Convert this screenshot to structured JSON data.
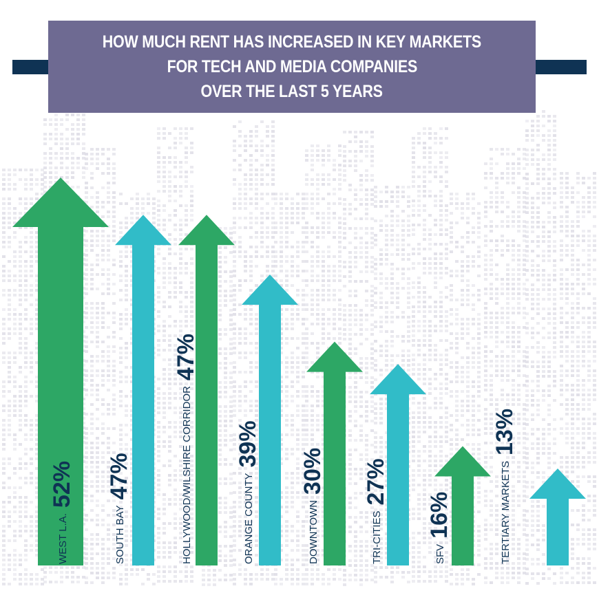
{
  "title": {
    "lines": [
      "HOW MUCH RENT HAS INCREASED IN KEY MARKETS",
      "FOR TECH AND MEDIA COMPANIES",
      "OVER THE LAST 5 YEARS"
    ]
  },
  "colors": {
    "green": "#2da765",
    "teal": "#31bcc8",
    "navy": "#0f3354",
    "title_bg": "#6e6a92",
    "title_text": "#ffffff",
    "city_grid": "#dedde6"
  },
  "chart_data": {
    "type": "bar",
    "title": "HOW MUCH RENT HAS INCREASED IN KEY MARKETS FOR TECH AND MEDIA COMPANIES OVER THE LAST 5 YEARS",
    "xlabel": "",
    "ylabel": "",
    "ylim": [
      0,
      55
    ],
    "grid": false,
    "categories": [
      "WEST L.A.",
      "SOUTH BAY",
      "HOLLYWOOD/WILSHIRE CORRIDOR",
      "ORANGE COUNTY",
      "DOWNTOWN",
      "TRI-CITIES",
      "SFV",
      "TERTIARY MARKETS"
    ],
    "values": [
      52,
      47,
      47,
      39,
      30,
      27,
      16,
      13
    ],
    "value_labels": [
      "52%",
      "47%",
      "47%",
      "39%",
      "30%",
      "27%",
      "16%",
      "13%"
    ],
    "bar_colors": [
      "green",
      "teal",
      "green",
      "teal",
      "green",
      "teal",
      "green",
      "teal"
    ]
  }
}
